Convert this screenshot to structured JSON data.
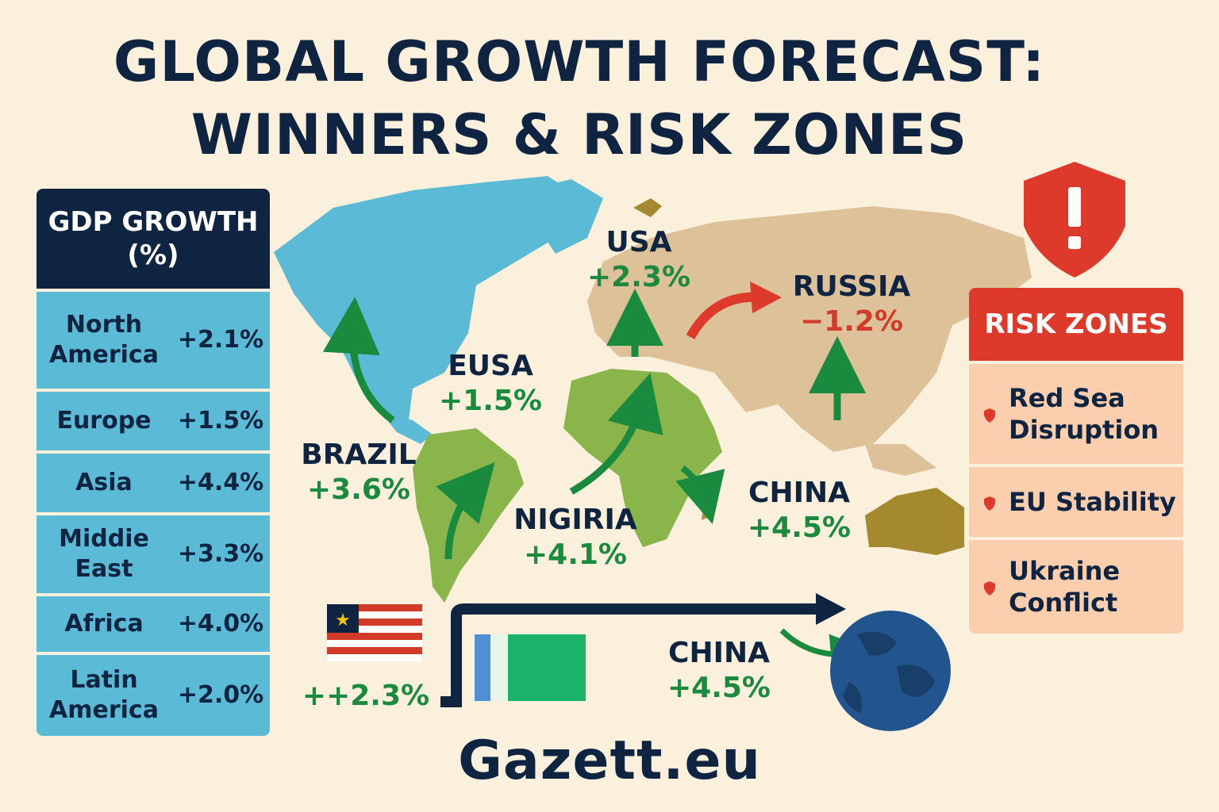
{
  "title": {
    "line1": "GLOBAL GROWTH FORECAST:",
    "line2": "WINNERS & RISK ZONES"
  },
  "gdp_panel": {
    "heading_line1": "GDP GROWTH",
    "heading_line2": "(%)",
    "rows": [
      {
        "region": "North America",
        "value": "+2.1%"
      },
      {
        "region": "Europe",
        "value": "+1.5%"
      },
      {
        "region": "Asia",
        "value": "+4.4%"
      },
      {
        "region": "Middie East",
        "value": "+3.3%"
      },
      {
        "region": "Africa",
        "value": "+4.0%"
      },
      {
        "region": "Latin America",
        "value": "+2.0%"
      }
    ]
  },
  "map_labels": {
    "usa": {
      "name": "USA",
      "value": "+2.3%"
    },
    "eusa": {
      "name": "EUSA",
      "value": "+1.5%"
    },
    "russia": {
      "name": "RUSSIA",
      "value": "−1.2%"
    },
    "brazil": {
      "name": "BRAZIL",
      "value": "+3.6%"
    },
    "nigiria": {
      "name": "NIGIRIA",
      "value": "+4.1%"
    },
    "china_map": {
      "name": "CHINA",
      "value": "+4.5%"
    },
    "flag_value": "++2.3%",
    "china_bottom": {
      "name": "CHINA",
      "value": "+4.5%"
    }
  },
  "risk_panel": {
    "heading": "RISK ZONES",
    "items": [
      "Red Sea Disruption",
      "EU Stability",
      "Ukraine Conflict"
    ]
  },
  "footer": {
    "brand": "Gazett.eu"
  },
  "colors": {
    "background": "#fbf0dc",
    "navy": "#0f2440",
    "green": "#1a8a3e",
    "red": "#dd3a2c",
    "panel_blue": "#5bbad5",
    "panel_peach": "#fbcfae"
  },
  "icons": [
    "shield-alert-icon",
    "usa-flag-icon",
    "nigeria-flag-icon",
    "globe-icon",
    "shield-bullet-icon"
  ]
}
